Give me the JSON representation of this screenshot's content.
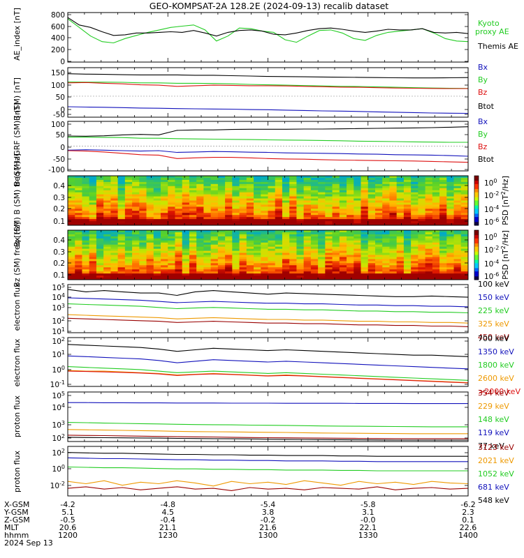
{
  "title": "GEO-KOMPSAT-2A 128.2E (2024-09-13) recalib dataset",
  "x_ticks": [
    "1200",
    "1230",
    "1300",
    "1330",
    "1400"
  ],
  "ephemeris": {
    "labels": [
      "X-GSM",
      "Y-GSM",
      "Z-GSM",
      "MLT",
      "hhmm",
      "2024 Sep 13"
    ],
    "columns": [
      [
        "-4.2",
        "5.1",
        "-0.5",
        "20.6",
        "1200"
      ],
      [
        "-4.8",
        "4.5",
        "-0.4",
        "21.1",
        "1230"
      ],
      [
        "-5.4",
        "3.8",
        "-0.2",
        "21.6",
        "1300"
      ],
      [
        "-5.8",
        "3.1",
        "-0.0",
        "22.1",
        "1330"
      ],
      [
        "-6.2",
        "2.3",
        "0.1",
        "22.6",
        "1400"
      ]
    ]
  },
  "colors": {
    "black": "#000000",
    "green": "#22cc22",
    "red": "#dd1111",
    "blue": "#1111bb",
    "dblue": "#0033cc",
    "orange": "#ee9900",
    "dred": "#990000",
    "grid": "#999999"
  },
  "chart_data": [
    {
      "type": "line",
      "ylabel": "AE_index [nT]",
      "yticks": [
        "800",
        "600",
        "400",
        "200",
        "0"
      ],
      "ylim": [
        0,
        800
      ],
      "series": [
        {
          "name": "Kyoto proxy AE",
          "color": "#22cc22",
          "values": [
            700,
            560,
            420,
            330,
            310,
            380,
            430,
            480,
            520,
            560,
            580,
            600,
            520,
            340,
            420,
            550,
            540,
            500,
            480,
            360,
            320,
            420,
            510,
            520,
            470,
            380,
            350,
            430,
            480,
            500,
            520,
            540,
            470,
            380,
            340,
            330
          ]
        },
        {
          "name": "Themis AE",
          "color": "#000000",
          "values": [
            720,
            600,
            560,
            490,
            430,
            440,
            470,
            470,
            480,
            490,
            480,
            510,
            470,
            420,
            480,
            510,
            520,
            500,
            450,
            440,
            470,
            510,
            540,
            550,
            530,
            500,
            480,
            500,
            530,
            520,
            520,
            540,
            480,
            470,
            480,
            460
          ]
        }
      ]
    },
    {
      "type": "line",
      "ylabel": "B (SM) [nT]",
      "yticks": [
        "150",
        "100",
        "50",
        "0",
        "-50",
        "-100"
      ],
      "ylim": [
        -110,
        150
      ],
      "series": [
        {
          "name": "Bx",
          "color": "#1111bb",
          "values": [
            -55,
            -57,
            -58,
            -60,
            -62,
            -63,
            -65,
            -66,
            -67,
            -68,
            -70,
            -71,
            -73,
            -75,
            -77,
            -78,
            -80,
            -82,
            -84,
            -86,
            -88,
            -89,
            -90
          ]
        },
        {
          "name": "By",
          "color": "#22cc22",
          "values": [
            75,
            74,
            74,
            73,
            70,
            70,
            68,
            68,
            67,
            65,
            62,
            60,
            58,
            56,
            54,
            52,
            51,
            49,
            47,
            45,
            43,
            42,
            41
          ]
        },
        {
          "name": "Bz",
          "color": "#dd1111",
          "values": [
            70,
            72,
            68,
            65,
            60,
            58,
            52,
            55,
            58,
            57,
            55,
            55,
            54,
            52,
            50,
            48,
            47,
            45,
            43,
            42,
            41,
            40,
            40
          ]
        },
        {
          "name": "Btot",
          "color": "#000000",
          "values": [
            118,
            116,
            115,
            113,
            112,
            112,
            112,
            110,
            110,
            108,
            106,
            104,
            103,
            102,
            101,
            100,
            99,
            98,
            97,
            96,
            96,
            97,
            98
          ]
        }
      ]
    },
    {
      "type": "line",
      "ylabel": "B (SM)-IGRF (SM) [nT]",
      "yticks": [
        "100",
        "50",
        "0",
        "-50",
        "-100"
      ],
      "ylim": [
        -110,
        110
      ],
      "series": [
        {
          "name": "Bx",
          "color": "#1111bb",
          "values": [
            -18,
            -16,
            -18,
            -20,
            -22,
            -20,
            -28,
            -26,
            -24,
            -25,
            -27,
            -28,
            -30,
            -31,
            -32,
            -33,
            -35,
            -36,
            -38,
            -39,
            -40,
            -42,
            -45
          ]
        },
        {
          "name": "By",
          "color": "#22cc22",
          "values": [
            40,
            40,
            39,
            38,
            35,
            35,
            33,
            32,
            31,
            30,
            29,
            28,
            27,
            26,
            25,
            24,
            22,
            21,
            20,
            19,
            18,
            17,
            17
          ]
        },
        {
          "name": "Bz",
          "color": "#dd1111",
          "values": [
            -20,
            -22,
            -26,
            -32,
            -38,
            -40,
            -55,
            -52,
            -50,
            -50,
            -52,
            -55,
            -57,
            -58,
            -60,
            -62,
            -63,
            -64,
            -65,
            -66,
            -68,
            -70,
            -72
          ]
        },
        {
          "name": "Btot",
          "color": "#000000",
          "values": [
            45,
            44,
            46,
            50,
            52,
            50,
            70,
            72,
            72,
            74,
            75,
            75,
            75,
            76,
            76,
            77,
            78,
            79,
            80,
            81,
            82,
            84,
            86
          ]
        }
      ]
    },
    {
      "type": "heatmap",
      "ylabel": "Bx (SM) B (SM) freq [Hz]",
      "yticks": [
        "0.4",
        "0.3",
        "0.2",
        "0.1"
      ],
      "ylim": [
        0.05,
        0.5
      ],
      "colorbar_label": "PSD [nT^2/Hz]",
      "colorbar_ticks": [
        "10^0",
        "10^-2",
        "10^-4",
        "10^-6"
      ]
    },
    {
      "type": "heatmap",
      "ylabel": "Bz (SM) freq [Hz]",
      "yticks": [
        "0.4",
        "0.3",
        "0.2",
        "0.1"
      ],
      "ylim": [
        0.05,
        0.5
      ],
      "colorbar_label": "PSD [nT^2/Hz]",
      "colorbar_ticks": [
        "10^0",
        "10^-2",
        "10^-4",
        "10^-6"
      ]
    },
    {
      "type": "line",
      "ylabel": "electron flux",
      "yscale": "log",
      "yticks": [
        "10^5",
        "10^4",
        "10^3",
        "10^2",
        "10^1"
      ],
      "ylim": [
        1,
        5
      ],
      "series": [
        {
          "name": "100 keV",
          "color": "#000000",
          "values": [
            4.6,
            4.4,
            4.5,
            4.4,
            4.3,
            4.3,
            4.1,
            4.4,
            4.5,
            4.4,
            4.3,
            4.2,
            4.3,
            4.25,
            4.2,
            4.15,
            4.1,
            4.05,
            4.0,
            4.0,
            4.05,
            4.0,
            3.95
          ]
        },
        {
          "name": "150 keV",
          "color": "#1111bb",
          "values": [
            3.9,
            3.85,
            3.8,
            3.75,
            3.7,
            3.6,
            3.5,
            3.55,
            3.6,
            3.55,
            3.5,
            3.45,
            3.45,
            3.4,
            3.4,
            3.35,
            3.3,
            3.3,
            3.25,
            3.25,
            3.2,
            3.2,
            3.15
          ]
        },
        {
          "name": "225 keV",
          "color": "#22cc22",
          "values": [
            3.4,
            3.35,
            3.3,
            3.25,
            3.2,
            3.1,
            3.0,
            3.05,
            3.1,
            3.05,
            3.0,
            2.95,
            2.95,
            2.9,
            2.9,
            2.85,
            2.8,
            2.8,
            2.75,
            2.75,
            2.7,
            2.7,
            2.65
          ]
        },
        {
          "name": "325 keV",
          "color": "#ee9900",
          "values": [
            2.5,
            2.45,
            2.4,
            2.35,
            2.3,
            2.25,
            2.15,
            2.2,
            2.25,
            2.2,
            2.15,
            2.1,
            2.1,
            2.05,
            2.05,
            2.0,
            1.95,
            1.95,
            1.9,
            1.9,
            1.85,
            1.85,
            1.8
          ]
        },
        {
          "name": "450 keV",
          "color": "#990000",
          "values": [
            2.2,
            2.15,
            2.1,
            2.05,
            2.0,
            1.95,
            1.85,
            1.9,
            1.95,
            1.9,
            1.85,
            1.8,
            1.8,
            1.75,
            1.75,
            1.7,
            1.65,
            1.65,
            1.6,
            1.6,
            1.55,
            1.55,
            1.5
          ]
        }
      ]
    },
    {
      "type": "line",
      "ylabel": "electron flux",
      "yscale": "log",
      "yticks": [
        "10^2",
        "10^1",
        "10^0",
        "10^-1"
      ],
      "ylim": [
        -1.2,
        2
      ],
      "series": [
        {
          "name": "700 keV",
          "color": "#000000",
          "values": [
            1.55,
            1.5,
            1.45,
            1.4,
            1.35,
            1.25,
            1.1,
            1.2,
            1.3,
            1.25,
            1.2,
            1.15,
            1.2,
            1.15,
            1.1,
            1.05,
            1.0,
            0.95,
            0.9,
            0.85,
            0.85,
            0.8,
            0.75
          ]
        },
        {
          "name": "1350 keV",
          "color": "#1111bb",
          "values": [
            0.8,
            0.75,
            0.7,
            0.65,
            0.6,
            0.5,
            0.35,
            0.45,
            0.55,
            0.5,
            0.45,
            0.4,
            0.45,
            0.4,
            0.35,
            0.3,
            0.25,
            0.2,
            0.15,
            0.1,
            0.05,
            0.0,
            -0.05
          ]
        },
        {
          "name": "1800 keV",
          "color": "#22cc22",
          "values": [
            0.1,
            0.05,
            0.0,
            -0.05,
            -0.1,
            -0.2,
            -0.3,
            -0.25,
            -0.2,
            -0.25,
            -0.3,
            -0.35,
            -0.3,
            -0.35,
            -0.4,
            -0.45,
            -0.5,
            -0.55,
            -0.6,
            -0.65,
            -0.7,
            -0.75,
            -0.8
          ]
        },
        {
          "name": "2600 keV",
          "color": "#ee9900",
          "values": [
            -0.15,
            -0.2,
            -0.2,
            -0.25,
            -0.3,
            -0.35,
            -0.45,
            -0.4,
            -0.35,
            -0.4,
            -0.45,
            -0.5,
            -0.45,
            -0.5,
            -0.55,
            -0.6,
            -0.65,
            -0.7,
            -0.75,
            -0.8,
            -0.85,
            -0.9,
            -0.95
          ]
        },
        {
          "name": ">2000 keV",
          "color": "#dd1111",
          "values": [
            -0.2,
            -0.22,
            -0.25,
            -0.28,
            -0.32,
            -0.38,
            -0.48,
            -0.42,
            -0.38,
            -0.42,
            -0.47,
            -0.52,
            -0.48,
            -0.52,
            -0.57,
            -0.62,
            -0.67,
            -0.72,
            -0.77,
            -0.82,
            -0.87,
            -0.92,
            -0.97
          ]
        }
      ]
    },
    {
      "type": "line",
      "ylabel": "proton flux",
      "yscale": "log",
      "yticks": [
        "10^5",
        "10^4",
        "10^3",
        "10^2"
      ],
      "ylim": [
        1.5,
        5
      ],
      "series": [
        {
          "name": "354 keV",
          "color": "#990000",
          "values": [
            1.95,
            1.93,
            1.92,
            1.9,
            1.88,
            1.86,
            1.84,
            1.83,
            1.82,
            1.8,
            1.78,
            1.77,
            1.76,
            1.75,
            1.74,
            1.73,
            1.72,
            1.71,
            1.7,
            1.7,
            1.7,
            1.7,
            1.7
          ]
        },
        {
          "name": "229 keV",
          "color": "#ee9900",
          "values": [
            2.35,
            2.33,
            2.31,
            2.29,
            2.27,
            2.25,
            2.22,
            2.2,
            2.19,
            2.18,
            2.16,
            2.15,
            2.14,
            2.12,
            2.1,
            2.09,
            2.08,
            2.07,
            2.06,
            2.05,
            2.05,
            2.05,
            2.05
          ]
        },
        {
          "name": "148 keV",
          "color": "#22cc22",
          "values": [
            2.85,
            2.83,
            2.8,
            2.78,
            2.76,
            2.74,
            2.72,
            2.7,
            2.69,
            2.68,
            2.66,
            2.65,
            2.64,
            2.62,
            2.6,
            2.59,
            2.58,
            2.57,
            2.56,
            2.55,
            2.54,
            2.54,
            2.54
          ]
        },
        {
          "name": "119 keV",
          "color": "#1111bb",
          "values": [
            4.25,
            4.25,
            4.24,
            4.24,
            4.23,
            4.23,
            4.22,
            4.22,
            4.22,
            4.21,
            4.21,
            4.21,
            4.2,
            4.2,
            4.2,
            4.2,
            4.19,
            4.19,
            4.19,
            4.18,
            4.18,
            4.18,
            4.18
          ]
        },
        {
          "name": "77 keV",
          "color": "#000000",
          "values": [
            1.8,
            1.78,
            1.77,
            1.76,
            1.75,
            1.74,
            1.72,
            1.71,
            1.7,
            1.69,
            1.68,
            1.67,
            1.66,
            1.65,
            1.64,
            1.63,
            1.62,
            1.61,
            1.6,
            1.6,
            1.6,
            1.6,
            1.6
          ]
        }
      ]
    },
    {
      "type": "line",
      "ylabel": "proton flux",
      "yscale": "log",
      "yticks": [
        "10^2",
        "10^0",
        "10^-2"
      ],
      "ylim": [
        -3.5,
        3
      ],
      "series": [
        {
          "name": "3123 keV",
          "color": "#990000",
          "values": [
            -2.5,
            -2.3,
            -2.6,
            -2.4,
            -2.7,
            -2.5,
            -2.3,
            -2.6,
            -2.5,
            -2.8,
            -2.4,
            -2.6,
            -2.5,
            -2.7,
            -2.4,
            -2.5,
            -2.6,
            -2.3,
            -2.7,
            -2.5,
            -2.4,
            -2.6,
            -2.5
          ]
        },
        {
          "name": "2021 keV",
          "color": "#ee9900",
          "values": [
            -1.6,
            -1.9,
            -1.5,
            -2.1,
            -1.7,
            -1.9,
            -1.5,
            -1.8,
            -2.2,
            -1.6,
            -1.9,
            -1.7,
            -2.0,
            -1.5,
            -1.8,
            -2.1,
            -1.6,
            -1.9,
            -1.7,
            -2.0,
            -1.6,
            -1.8,
            -1.9
          ]
        },
        {
          "name": "1052 keV",
          "color": "#22cc22",
          "values": [
            0.3,
            0.25,
            0.2,
            0.2,
            0.15,
            0.1,
            0.05,
            0.05,
            0.0,
            0.0,
            -0.05,
            -0.05,
            -0.1,
            -0.1,
            -0.1,
            -0.15,
            -0.15,
            -0.2,
            -0.2,
            -0.2,
            -0.2,
            -0.2,
            -0.2
          ]
        },
        {
          "name": "681 keV",
          "color": "#1111bb",
          "values": [
            1.5,
            1.45,
            1.4,
            1.4,
            1.35,
            1.3,
            1.25,
            1.25,
            1.2,
            1.2,
            1.15,
            1.15,
            1.1,
            1.1,
            1.1,
            1.05,
            1.05,
            1.0,
            1.0,
            1.0,
            1.0,
            1.0,
            1.0
          ]
        },
        {
          "name": "548 keV",
          "color": "#000000",
          "values": [
            2.2,
            2.15,
            2.1,
            2.1,
            2.05,
            2.0,
            1.95,
            1.95,
            1.9,
            1.9,
            1.85,
            1.85,
            1.8,
            1.8,
            1.8,
            1.75,
            1.75,
            1.7,
            1.7,
            1.7,
            1.7,
            1.7,
            1.7
          ]
        }
      ]
    }
  ]
}
